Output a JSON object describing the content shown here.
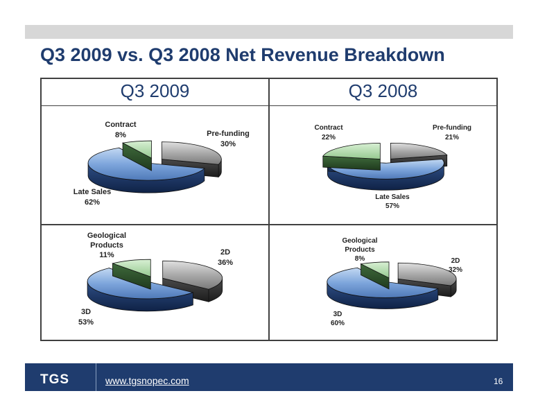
{
  "title": "Q3 2009 vs. Q3 2008 Net Revenue Breakdown",
  "columns": [
    "Q3 2009",
    "Q3 2008"
  ],
  "footer": {
    "logo": "TGS",
    "url": "www.tgsnopec.com",
    "page": "16"
  },
  "colors": {
    "navy": "#1f3c6e",
    "blue": "#7ea6dc",
    "gray": "#9a9a9a",
    "green": "#a9d8a3"
  },
  "chart_data": [
    {
      "type": "pie",
      "period": "Q3 2009",
      "categories": [
        "Pre-funding",
        "Late Sales",
        "Contract"
      ],
      "values": [
        30,
        62,
        8
      ],
      "labels": [
        "30%",
        "62%",
        "8%"
      ]
    },
    {
      "type": "pie",
      "period": "Q3 2008",
      "categories": [
        "Pre-funding",
        "Late Sales",
        "Contract"
      ],
      "values": [
        21,
        57,
        22
      ],
      "labels": [
        "21%",
        "57%",
        "22%"
      ]
    },
    {
      "type": "pie",
      "period": "Q3 2009",
      "categories": [
        "2D",
        "3D",
        "Geological Products"
      ],
      "values": [
        36,
        53,
        11
      ],
      "labels": [
        "36%",
        "53%",
        "11%"
      ]
    },
    {
      "type": "pie",
      "period": "Q3 2008",
      "categories": [
        "2D",
        "3D",
        "Geological Products"
      ],
      "values": [
        32,
        60,
        8
      ],
      "labels": [
        "32%",
        "60%",
        "8%"
      ]
    }
  ]
}
